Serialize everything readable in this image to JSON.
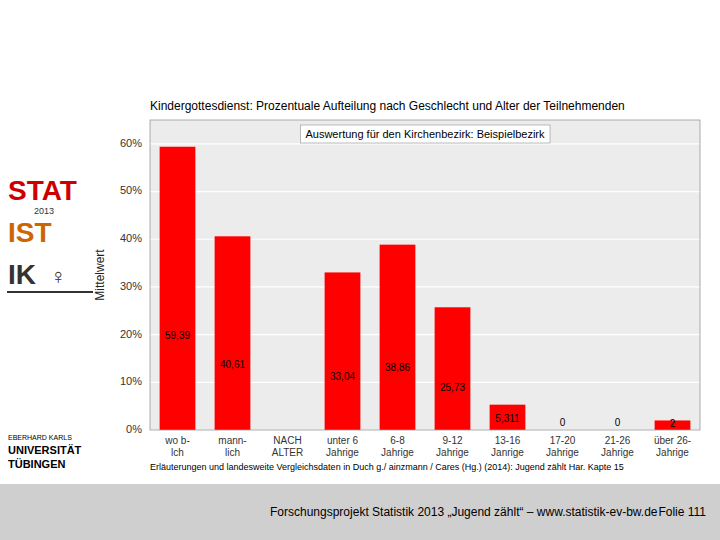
{
  "chart_data": {
    "type": "bar",
    "title": "Kindergottesdienst: Prozentuale Aufteilung nach Geschlecht und Alter der Teilnehmenden",
    "subtitle": "Auswertung für den Kirchenbezirk: Beispielbezirk",
    "y_label": "Mittelwert",
    "categories": [
      "wo b-\nlch",
      "mann-\nlich",
      "NACH\nALTER",
      "unter 6\nJahrige",
      "6-8\nJahrige",
      "9-12\nJahrige",
      "13-16\nJanrige",
      "17-20\nJahrige",
      "21-26\nJahrige",
      "über 26-\nJahrige"
    ],
    "values": [
      59.39,
      40.61,
      0,
      33.04,
      38.86,
      25.73,
      5.311,
      0,
      0,
      2
    ],
    "value_labels": [
      "59,39",
      "40,61",
      null,
      "33,04",
      "38,86",
      "25,73",
      "5,311",
      "0",
      "0",
      "2"
    ],
    "data_labels": true,
    "color": "#ff0000",
    "ylim": [
      0,
      65
    ],
    "yticks": [
      {
        "value": 0,
        "label": "0%"
      },
      {
        "value": 10,
        "label": "10%"
      },
      {
        "value": 20,
        "label": "20%"
      },
      {
        "value": 30,
        "label": "30%"
      },
      {
        "value": 40,
        "label": "40%"
      },
      {
        "value": 50,
        "label": "50%"
      },
      {
        "value": 60,
        "label": "60%"
      }
    ],
    "grid": true,
    "annotations": [
      {
        "text": "Erläuterungen und landesweite Vergleichsdaten in Duch  g./  ainzmann / Cares (Hg.) (2014): Jugend zählt Har. Kapte 15",
        "color": "#000000"
      },
      {
        "text": "Forschungsprojekt Statistik 2013 „Jugend zählt“ –  www.statistik-ev-bw.de",
        "color": "#000000"
      },
      {
        "text": "Folie 111",
        "color": "#000000"
      },
      {
        "text": "STAT",
        "color": "#cc0000"
      },
      {
        "text": "IST",
        "color": "#cc6600"
      },
      {
        "text": "IK",
        "color": "#333333"
      },
      {
        "text": "2013",
        "color": "#333333"
      },
      {
        "text": "♀",
        "color": "#333333"
      },
      {
        "text": "EBERHARD KARLS",
        "color": "#000000"
      },
      {
        "text": "UNIVERSITÄT",
        "color": "#000000"
      },
      {
        "text": "TÜBINGEN",
        "color": "#000000"
      }
    ]
  }
}
